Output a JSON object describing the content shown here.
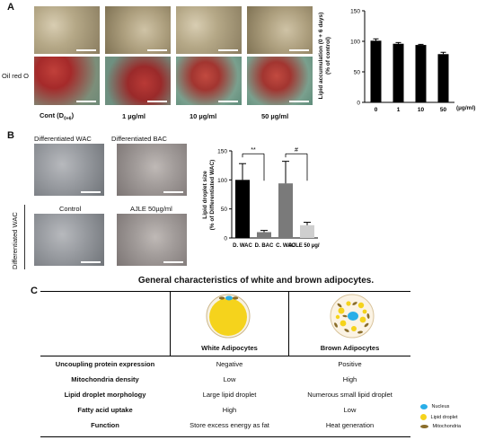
{
  "panel_a": {
    "letter": "A",
    "row_label": "Oil red O",
    "conditions": [
      {
        "label_main": "Cont (D",
        "label_sub": "0+6",
        "label_end": ")"
      },
      {
        "label_main": "1 µg/ml",
        "label_sub": "",
        "label_end": ""
      },
      {
        "label_main": "10 µg/ml",
        "label_sub": "",
        "label_end": ""
      },
      {
        "label_main": "50 µg/ml",
        "label_sub": "",
        "label_end": ""
      }
    ],
    "unit_label": "(µg/ml)",
    "ylabel_line1": "Lipid accumulation (0 + 6 days)",
    "ylabel_line2": "(% of control)"
  },
  "panel_b": {
    "letter": "B",
    "img_labels": [
      "Differentiated WAC",
      "Differentiated BAC",
      "Control",
      "AJLE 50µg/ml"
    ],
    "side_label": "Differentiated WAC",
    "ylabel_line1": "Lipid droplet size",
    "ylabel_line2": "(% of Differentiated WAC)",
    "sig1": "**",
    "sig2": "#"
  },
  "panel_c": {
    "letter": "C",
    "title": "General characteristics of white and brown adipocytes.",
    "col_white": "White Adipocytes",
    "col_brown": "Brown Adipocytes",
    "rows": [
      {
        "label": "Uncoupling protein expression",
        "white": "Negative",
        "brown": "Positive"
      },
      {
        "label": "Mitochondria density",
        "white": "Low",
        "brown": "High"
      },
      {
        "label": "Lipid droplet morphology",
        "white": "Large lipid droplet",
        "brown": "Numerous small lipid droplet"
      },
      {
        "label": "Fatty acid uptake",
        "white": "High",
        "brown": "Low"
      },
      {
        "label": "Function",
        "white": "Store excess energy as fat",
        "brown": "Heat generation"
      }
    ],
    "legend": [
      {
        "label": "Nucleus",
        "color": "#29aee8"
      },
      {
        "label": "Lipid droplet",
        "color": "#f5d31c"
      },
      {
        "label": "Mitochondria",
        "color": "#8a6d2a"
      }
    ]
  },
  "chart_data": [
    {
      "type": "bar",
      "categories": [
        "0",
        "1",
        "10",
        "50"
      ],
      "values": [
        101,
        96,
        94,
        79
      ],
      "errors": [
        3,
        2,
        1,
        3
      ],
      "colors": [
        "#000000",
        "#000000",
        "#000000",
        "#000000"
      ],
      "ylim": [
        0,
        150
      ],
      "yticks": [
        0,
        50,
        100,
        150
      ],
      "xlabel": "(µg/ml)",
      "ylabel": "Lipid accumulation (0 + 6 days) (% of control)"
    },
    {
      "type": "bar",
      "categories": [
        "D. WAC",
        "D. BAC",
        "C. WAC",
        "AJLE 50 µg/ml"
      ],
      "values": [
        100,
        10,
        94,
        22
      ],
      "errors": [
        28,
        3,
        38,
        5
      ],
      "colors": [
        "#000000",
        "#7a7a7a",
        "#7a7a7a",
        "#cfcfcf"
      ],
      "ylim": [
        0,
        150
      ],
      "yticks": [
        0,
        50,
        100,
        150
      ],
      "ylabel": "Lipid droplet size (% of Differentiated WAC)"
    }
  ]
}
